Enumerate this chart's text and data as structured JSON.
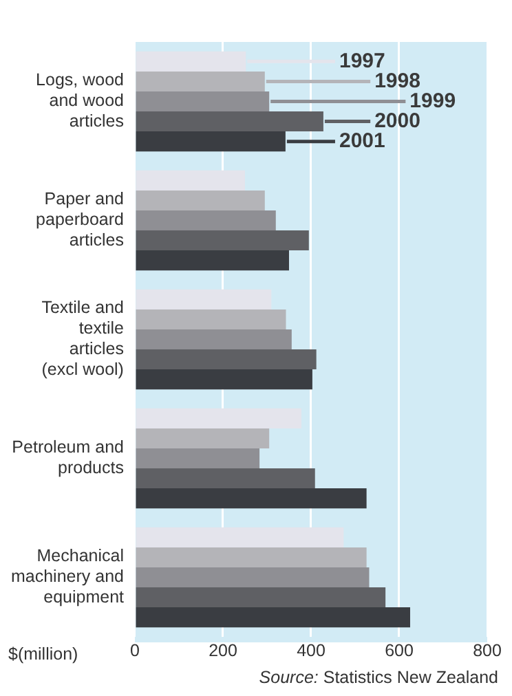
{
  "chart_data": {
    "type": "bar",
    "orientation": "horizontal",
    "categories": [
      "Logs, wood and wood articles",
      "Paper and paperboard articles",
      "Textile and textile articles (excl wool)",
      "Petroleum and products",
      "Mechanical machinery and equipment"
    ],
    "series": [
      {
        "name": "1997",
        "color": "#e4e4ec",
        "values": [
          252,
          250,
          310,
          378,
          474
        ]
      },
      {
        "name": "1998",
        "color": "#b4b4b8",
        "values": [
          295,
          295,
          343,
          305,
          526
        ]
      },
      {
        "name": "1999",
        "color": "#8f8f94",
        "values": [
          305,
          320,
          356,
          283,
          532
        ]
      },
      {
        "name": "2000",
        "color": "#5f6064",
        "values": [
          428,
          395,
          412,
          409,
          569
        ]
      },
      {
        "name": "2001",
        "color": "#3a3d42",
        "values": [
          342,
          350,
          403,
          526,
          625
        ]
      }
    ],
    "xlim": [
      0,
      800
    ],
    "xticks": [
      0,
      200,
      400,
      600,
      800
    ],
    "grid": "x",
    "legend": "top right",
    "xlabel": "$(million)",
    "annotations": [
      "Source: Statistics New Zealand"
    ]
  }
}
